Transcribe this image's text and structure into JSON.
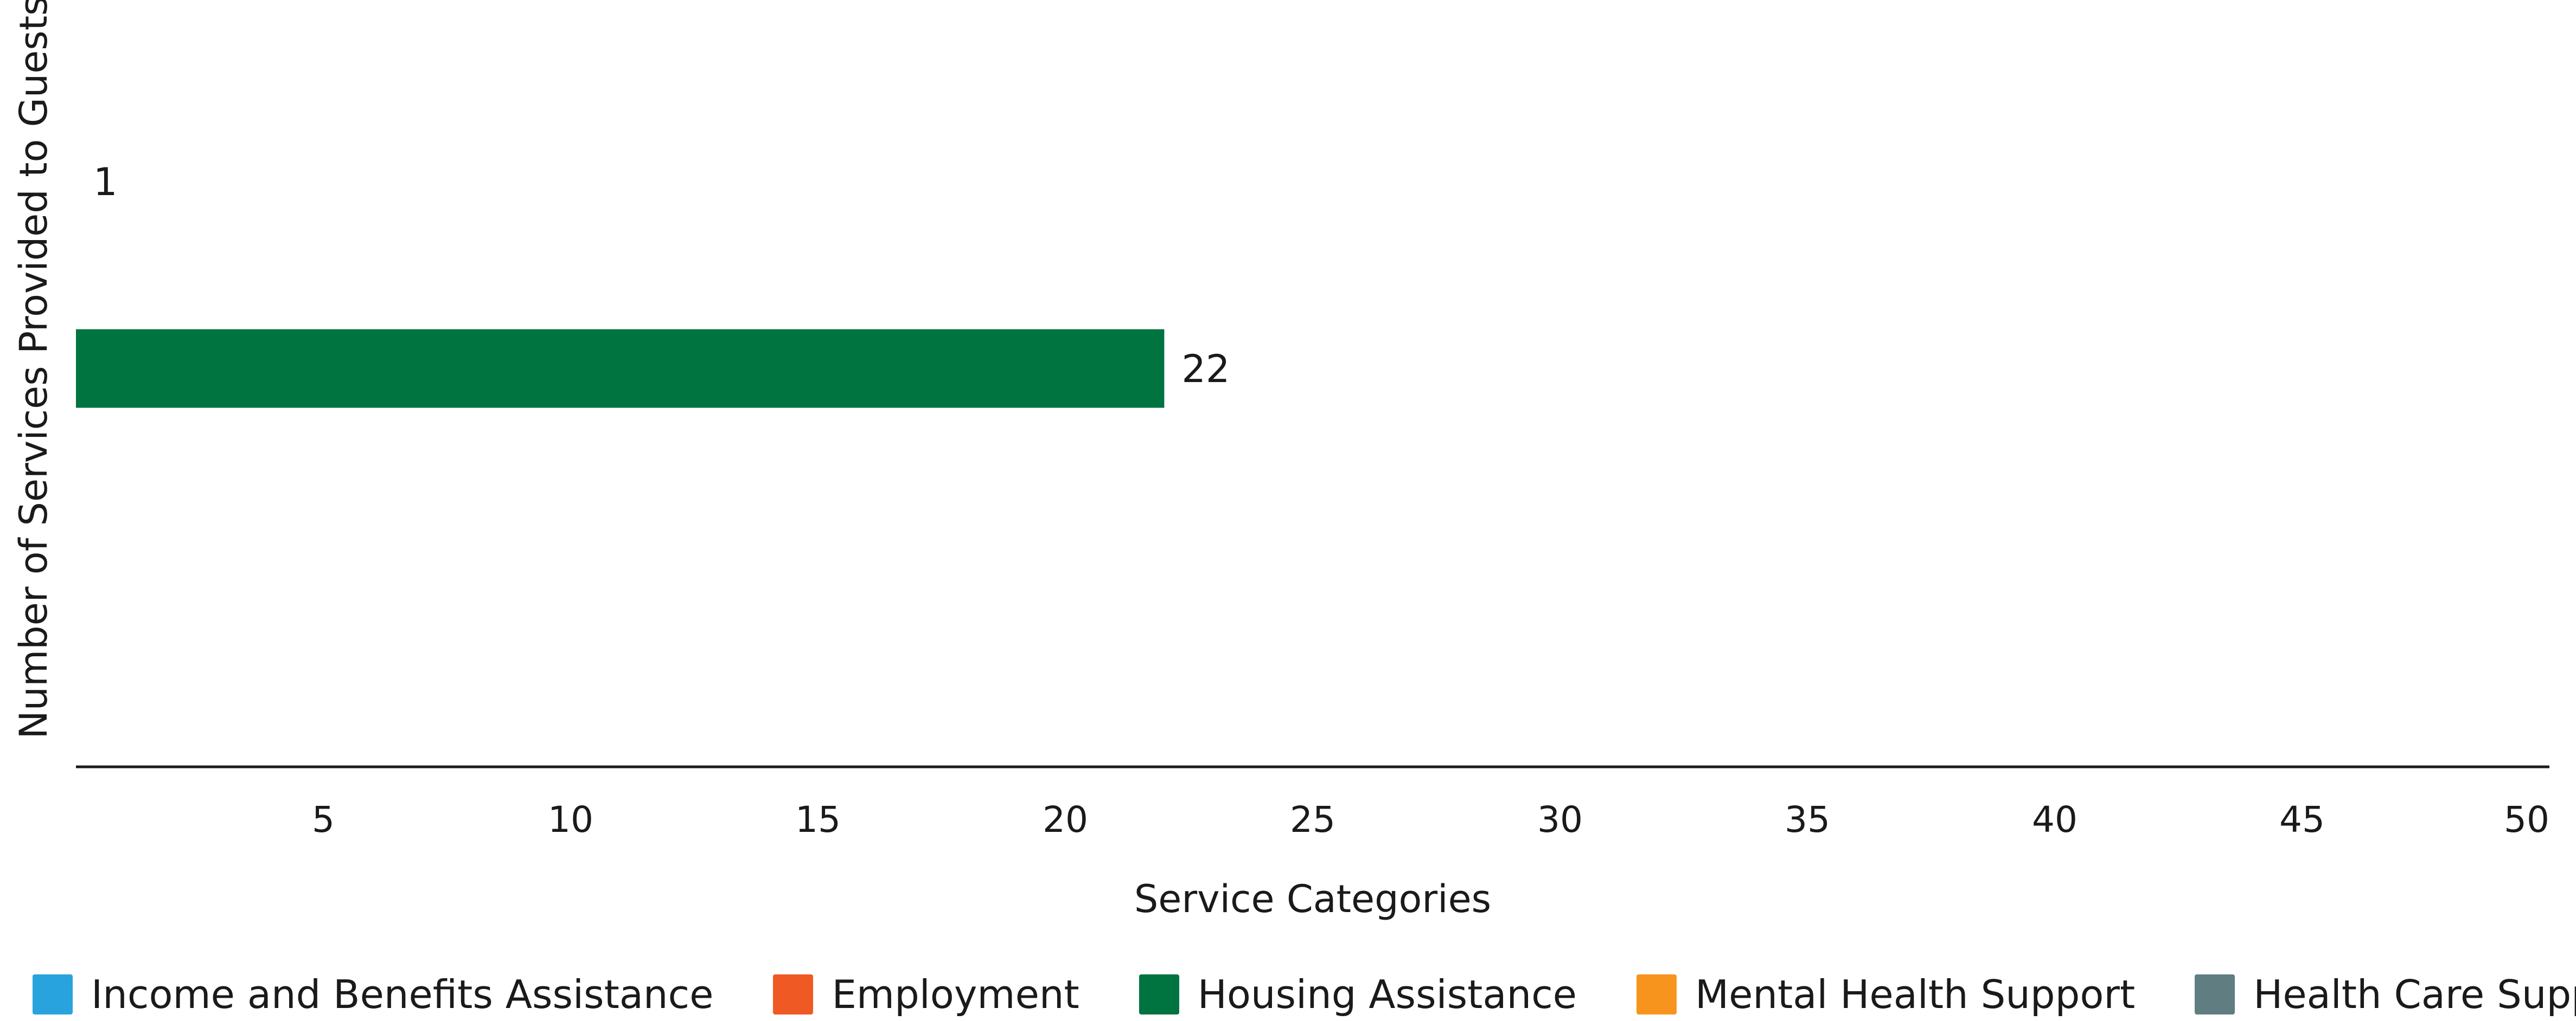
{
  "chart_data": {
    "type": "bar",
    "orientation": "horizontal",
    "xlabel": "Service Categories",
    "ylabel": "Number of Services Provided to Guests",
    "xlim": [
      0,
      50
    ],
    "x_ticks": [
      5,
      10,
      15,
      20,
      25,
      30,
      35,
      40,
      45,
      50
    ],
    "grid": false,
    "legend_position": "bottom",
    "series": [
      {
        "name": "Income and Benefits Assistance",
        "value": 1,
        "color": "#29a3dd"
      },
      {
        "name": "Employment",
        "value": null,
        "color": "#ef5a24"
      },
      {
        "name": "Housing Assistance",
        "value": 22,
        "color": "#007440"
      },
      {
        "name": "Mental Health Support",
        "value": null,
        "color": "#f7941d"
      },
      {
        "name": "Health Care Support",
        "value": null,
        "color": "#607d82"
      }
    ],
    "data_labels": [
      "1",
      "22"
    ]
  }
}
